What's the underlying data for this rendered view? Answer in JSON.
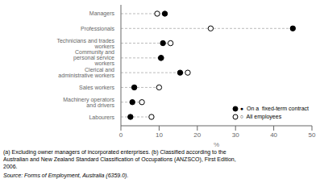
{
  "chart_data": {
    "type": "dot",
    "orientation": "horizontal",
    "xlabel": "%",
    "categories": [
      "Managers",
      "Professionals",
      "Technicians and trades workers",
      "Community and personal service workers",
      "Clerical and administrative workers",
      "Sales workers",
      "Machinery operators and drivers",
      "Labourers"
    ],
    "series": [
      {
        "name": "●  On a  fixed-term contract",
        "color": "#000000",
        "values": [
          11.5,
          45.0,
          11.0,
          10.5,
          15.5,
          3.5,
          3.0,
          2.5
        ]
      },
      {
        "name": "○  All employees",
        "color": "#ffffff",
        "values": [
          9.5,
          23.5,
          13.0,
          10.5,
          17.5,
          10.0,
          5.5,
          8.0
        ]
      }
    ],
    "xlim": [
      0,
      50
    ],
    "xticks": [
      0,
      10,
      20,
      30,
      40,
      50
    ],
    "legend": "lower right",
    "annotations": [
      "(a) Excluding owner managers of incorporated enterprises. (b) Classified according to the",
      "Australian and New Zealand Standard Classification of Occupations (ANZSCO), First Edition,",
      "2006.",
      "Source: Forms of Employment, Australia (6359.0)."
    ]
  }
}
